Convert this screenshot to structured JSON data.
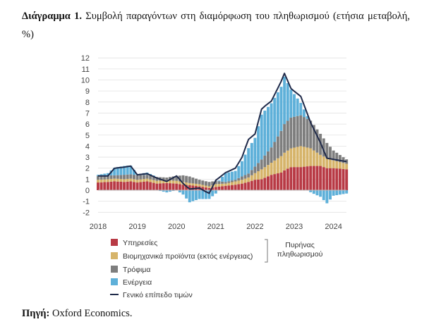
{
  "caption": {
    "label": "Διάγραμμα 1.",
    "text": "Συμβολή παραγόντων στη διαμόρφωση του πληθωρισμού (ετήσια μεταβολή, %)"
  },
  "source": {
    "label": "Πηγή:",
    "text": "Oxford Economics."
  },
  "colors": {
    "services": "#b83a45",
    "industrial": "#d6b46a",
    "food": "#7e7e7e",
    "energy": "#5eb0d9",
    "headline": "#1f2a4a"
  },
  "chart_data": {
    "type": "bar",
    "subtype": "stacked-bar-with-line",
    "title": "",
    "xlabel": "",
    "ylabel": "",
    "ylim": [
      -2,
      12
    ],
    "yticks": [
      -2,
      -1,
      0,
      1,
      2,
      3,
      4,
      5,
      6,
      7,
      8,
      9,
      10,
      11,
      12
    ],
    "xticks": [
      {
        "label": "2018",
        "t": 2018.0
      },
      {
        "label": "2019",
        "t": 2019.0
      },
      {
        "label": "2020",
        "t": 2020.0
      },
      {
        "label": "2021",
        "t": 2021.0
      },
      {
        "label": "2022",
        "t": 2022.0
      },
      {
        "label": "2023",
        "t": 2023.0
      },
      {
        "label": "2024",
        "t": 2024.0
      }
    ],
    "period": {
      "start": 2018.0,
      "end": 2024.33,
      "frequency": "monthly"
    },
    "keypoints": [
      {
        "t": 2018.0,
        "services": 0.7,
        "industrial": 0.25,
        "food": 0.35,
        "energy": 0.1,
        "headline": 1.3
      },
      {
        "t": 2018.25,
        "services": 0.75,
        "industrial": 0.25,
        "food": 0.35,
        "energy": 0.2,
        "headline": 1.3
      },
      {
        "t": 2018.42,
        "services": 0.8,
        "industrial": 0.25,
        "food": 0.3,
        "energy": 0.7,
        "headline": 2.0
      },
      {
        "t": 2018.67,
        "services": 0.75,
        "industrial": 0.25,
        "food": 0.4,
        "energy": 0.8,
        "headline": 2.1
      },
      {
        "t": 2018.83,
        "services": 0.8,
        "industrial": 0.25,
        "food": 0.4,
        "energy": 0.8,
        "headline": 2.2
      },
      {
        "t": 2019.0,
        "services": 0.7,
        "industrial": 0.25,
        "food": 0.4,
        "energy": 0.1,
        "headline": 1.4
      },
      {
        "t": 2019.25,
        "services": 0.8,
        "industrial": 0.25,
        "food": 0.35,
        "energy": 0.2,
        "headline": 1.5
      },
      {
        "t": 2019.5,
        "services": 0.6,
        "industrial": 0.25,
        "food": 0.35,
        "energy": 0.0,
        "headline": 1.1
      },
      {
        "t": 2019.75,
        "services": 0.65,
        "industrial": 0.25,
        "food": 0.25,
        "energy": -0.2,
        "headline": 0.8
      },
      {
        "t": 2020.0,
        "services": 0.6,
        "industrial": 0.25,
        "food": 0.45,
        "energy": 0.0,
        "headline": 1.3
      },
      {
        "t": 2020.17,
        "services": 0.5,
        "industrial": 0.25,
        "food": 0.6,
        "energy": -0.4,
        "headline": 0.6
      },
      {
        "t": 2020.33,
        "services": 0.45,
        "industrial": 0.2,
        "food": 0.6,
        "energy": -1.1,
        "headline": 0.1
      },
      {
        "t": 2020.58,
        "services": 0.35,
        "industrial": 0.2,
        "food": 0.4,
        "energy": -0.8,
        "headline": 0.2
      },
      {
        "t": 2020.83,
        "services": 0.2,
        "industrial": 0.15,
        "food": 0.4,
        "energy": -0.8,
        "headline": -0.3
      },
      {
        "t": 2021.0,
        "services": 0.3,
        "industrial": 0.25,
        "food": 0.3,
        "energy": -0.3,
        "headline": 0.9
      },
      {
        "t": 2021.25,
        "services": 0.4,
        "industrial": 0.2,
        "food": 0.15,
        "energy": 0.8,
        "headline": 1.6
      },
      {
        "t": 2021.5,
        "services": 0.5,
        "industrial": 0.3,
        "food": 0.15,
        "energy": 0.8,
        "headline": 2.0
      },
      {
        "t": 2021.67,
        "services": 0.6,
        "industrial": 0.35,
        "food": 0.3,
        "energy": 1.4,
        "headline": 3.0
      },
      {
        "t": 2021.83,
        "services": 0.75,
        "industrial": 0.4,
        "food": 0.35,
        "energy": 2.3,
        "headline": 4.6
      },
      {
        "t": 2022.0,
        "services": 0.95,
        "industrial": 0.6,
        "food": 0.6,
        "energy": 2.6,
        "headline": 5.1
      },
      {
        "t": 2022.17,
        "services": 1.0,
        "industrial": 0.9,
        "food": 0.9,
        "energy": 4.1,
        "headline": 7.4
      },
      {
        "t": 2022.42,
        "services": 1.4,
        "industrial": 1.1,
        "food": 1.4,
        "energy": 4.0,
        "headline": 8.1
      },
      {
        "t": 2022.67,
        "services": 1.6,
        "industrial": 1.5,
        "food": 2.3,
        "energy": 4.0,
        "headline": 9.9
      },
      {
        "t": 2022.75,
        "services": 1.8,
        "industrial": 1.6,
        "food": 2.6,
        "energy": 4.3,
        "headline": 10.6
      },
      {
        "t": 2022.92,
        "services": 2.1,
        "industrial": 1.7,
        "food": 2.8,
        "energy": 2.5,
        "headline": 9.2
      },
      {
        "t": 2023.17,
        "services": 2.1,
        "industrial": 1.9,
        "food": 2.8,
        "energy": 1.1,
        "headline": 8.5
      },
      {
        "t": 2023.42,
        "services": 2.2,
        "industrial": 1.6,
        "food": 2.5,
        "energy": -0.2,
        "headline": 6.1
      },
      {
        "t": 2023.67,
        "services": 2.2,
        "industrial": 1.0,
        "food": 1.9,
        "energy": -0.6,
        "headline": 4.3
      },
      {
        "t": 2023.83,
        "services": 2.0,
        "industrial": 0.9,
        "food": 1.4,
        "energy": -1.2,
        "headline": 2.9
      },
      {
        "t": 2024.0,
        "services": 2.0,
        "industrial": 0.7,
        "food": 0.9,
        "energy": -0.5,
        "headline": 2.8
      },
      {
        "t": 2024.33,
        "services": 1.9,
        "industrial": 0.5,
        "food": 0.4,
        "energy": -0.3,
        "headline": 2.6
      }
    ],
    "series": [
      {
        "key": "services",
        "name": "Υπηρεσίες",
        "kind": "bar"
      },
      {
        "key": "industrial",
        "name": "Βιομηχανικά προϊόντα (εκτός ενέργειας)",
        "kind": "bar"
      },
      {
        "key": "food",
        "name": "Τρόφιμα",
        "kind": "bar"
      },
      {
        "key": "energy",
        "name": "Ενέργεια",
        "kind": "bar"
      },
      {
        "key": "headline",
        "name": "Γενικό επίπεδο τιμών",
        "kind": "line"
      }
    ],
    "core_bracket_label": [
      "Πυρήνας",
      "πληθωρισμού"
    ],
    "legend_position": "bottom-left"
  }
}
